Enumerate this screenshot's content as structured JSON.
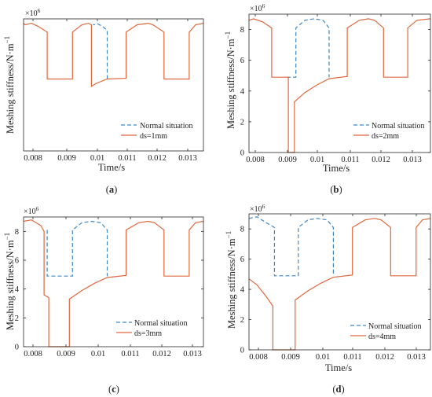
{
  "colors": {
    "normal": "#3d86c6",
    "damaged": "#e0673d",
    "axis": "#262626"
  },
  "panels": [
    {
      "caption_open": "(",
      "caption_letter": "a",
      "caption_close": ")",
      "exponent_base": "×10",
      "exponent_power": "6",
      "legend": [
        "Normal situation",
        "ds=1mm"
      ],
      "xlabel": "Time/s",
      "ylabel": "Meshing stiffness/N·m",
      "ylabel_sup": "−1",
      "yticks": [],
      "xticks": [
        "0.008",
        "0.009",
        "0.01",
        "0.011",
        "0.012",
        "0.013"
      ]
    },
    {
      "caption_open": "(",
      "caption_letter": "b",
      "caption_close": ")",
      "exponent_base": "×10",
      "exponent_power": "6",
      "legend": [
        "Normal situation",
        "ds=2mm"
      ],
      "xlabel": "Time/s",
      "ylabel": "Meshing stiffness/N·m",
      "ylabel_sup": "−1",
      "yticks": [
        "0",
        "2",
        "4",
        "6",
        "8"
      ],
      "xticks": [
        "0.008",
        "0.009",
        "0.01",
        "0.011",
        "0.012",
        "0.013"
      ]
    },
    {
      "caption_open": "(",
      "caption_letter": "c",
      "caption_close": ")",
      "exponent_base": "×10",
      "exponent_power": "6",
      "legend": [
        "Normal situation",
        "ds=3mm"
      ],
      "xlabel": "Time/s",
      "ylabel": "Meshing stiffness/N·m",
      "ylabel_sup": "−1",
      "yticks": [
        "0",
        "2",
        "4",
        "6",
        "8"
      ],
      "xticks": [
        "0.008",
        "0.009",
        "0.01",
        "0.011",
        "0.012",
        "0.013"
      ]
    },
    {
      "caption_open": "(",
      "caption_letter": "d",
      "caption_close": ")",
      "exponent_base": "×10",
      "exponent_power": "6",
      "legend": [
        "Normal situation",
        "ds=4mm"
      ],
      "xlabel": "Time/s",
      "ylabel": "Meshing stiffness/N·m",
      "ylabel_sup": "−1",
      "yticks": [
        "0",
        "2",
        "4",
        "6",
        "8"
      ],
      "xticks": [
        "0.008",
        "0.009",
        "0.01",
        "0.011",
        "0.012",
        "0.013"
      ]
    }
  ],
  "chart_data": [
    {
      "type": "line",
      "ylabel": "Meshing stiffness/N·m−1",
      "xlabel": "Time/s",
      "y_multiplier": "×10^6",
      "xlim": [
        0.00775,
        0.01345
      ],
      "ylim": [
        0,
        9
      ],
      "legend_position": "bottom-right",
      "series": [
        {
          "name": "Normal situation",
          "style": "dashed",
          "points": [
            [
              0.0104,
              4.9
            ],
            [
              0.0104,
              8.2
            ],
            [
              0.01025,
              8.5
            ],
            [
              0.0101,
              8.65
            ],
            [
              0.00995,
              8.6
            ]
          ]
        },
        {
          "name": "ds=1mm",
          "style": "solid",
          "points": [
            [
              0.00775,
              8.7
            ],
            [
              0.0078,
              8.6
            ],
            [
              0.008,
              8.7
            ],
            [
              0.0082,
              8.5
            ],
            [
              0.0085,
              8.1
            ],
            [
              0.0085,
              4.9
            ],
            [
              0.0093,
              4.9
            ],
            [
              0.0093,
              8.1
            ],
            [
              0.0096,
              8.6
            ],
            [
              0.0098,
              8.7
            ],
            [
              0.0099,
              8.6
            ],
            [
              0.0099,
              4.4
            ],
            [
              0.01005,
              4.6
            ],
            [
              0.0104,
              4.9
            ],
            [
              0.011,
              4.95
            ],
            [
              0.011,
              8.1
            ],
            [
              0.01135,
              8.6
            ],
            [
              0.0117,
              8.7
            ],
            [
              0.01185,
              8.6
            ],
            [
              0.0122,
              8.1
            ],
            [
              0.0122,
              4.9
            ],
            [
              0.013,
              4.9
            ],
            [
              0.013,
              8.1
            ],
            [
              0.0132,
              8.6
            ],
            [
              0.01345,
              8.7
            ]
          ]
        }
      ]
    },
    {
      "type": "line",
      "ylabel": "Meshing stiffness/N·m−1",
      "xlabel": "Time/s",
      "y_multiplier": "×10^6",
      "xlim": [
        0.00775,
        0.01375
      ],
      "ylim": [
        0,
        9
      ],
      "yticks": [
        0,
        2,
        4,
        6,
        8
      ],
      "legend_position": "bottom-right",
      "series": [
        {
          "name": "Normal situation",
          "style": "dashed",
          "points": [
            [
              0.009,
              4.9
            ],
            [
              0.0093,
              4.9
            ],
            [
              0.0093,
              8.1
            ],
            [
              0.0096,
              8.6
            ],
            [
              0.0099,
              8.7
            ],
            [
              0.0102,
              8.6
            ],
            [
              0.0104,
              8.1
            ],
            [
              0.0104,
              4.9
            ]
          ]
        },
        {
          "name": "ds=2mm",
          "style": "solid",
          "points": [
            [
              0.00775,
              8.6
            ],
            [
              0.0079,
              8.7
            ],
            [
              0.0082,
              8.5
            ],
            [
              0.0085,
              8.1
            ],
            [
              0.0085,
              4.9
            ],
            [
              0.00905,
              4.9
            ],
            [
              0.00905,
              0
            ],
            [
              0.00925,
              0
            ],
            [
              0.00925,
              3.3
            ],
            [
              0.0096,
              3.9
            ],
            [
              0.01,
              4.4
            ],
            [
              0.0104,
              4.8
            ],
            [
              0.011,
              4.95
            ],
            [
              0.011,
              8.1
            ],
            [
              0.0114,
              8.6
            ],
            [
              0.0117,
              8.7
            ],
            [
              0.0119,
              8.6
            ],
            [
              0.0122,
              8.1
            ],
            [
              0.0122,
              4.9
            ],
            [
              0.013,
              4.9
            ],
            [
              0.013,
              8.1
            ],
            [
              0.0133,
              8.6
            ],
            [
              0.01375,
              8.7
            ]
          ]
        }
      ]
    },
    {
      "type": "line",
      "ylabel": "Meshing stiffness/N·m−1",
      "xlabel": "Time/s",
      "y_multiplier": "×10^6",
      "xlim": [
        0.00775,
        0.01345
      ],
      "ylim": [
        0,
        9
      ],
      "yticks": [
        0,
        2,
        4,
        6,
        8
      ],
      "legend_position": "bottom-right",
      "series": [
        {
          "name": "Normal situation",
          "style": "dashed",
          "points": [
            [
              0.0085,
              8.1
            ],
            [
              0.0085,
              4.9
            ],
            [
              0.0093,
              4.9
            ],
            [
              0.0093,
              8.1
            ],
            [
              0.0096,
              8.6
            ],
            [
              0.0099,
              8.7
            ],
            [
              0.0102,
              8.6
            ],
            [
              0.0104,
              8.1
            ],
            [
              0.0104,
              4.9
            ]
          ]
        },
        {
          "name": "ds=3mm",
          "style": "solid",
          "points": [
            [
              0.00775,
              8.7
            ],
            [
              0.008,
              8.8
            ],
            [
              0.0083,
              8.4
            ],
            [
              0.0084,
              8.0
            ],
            [
              0.0084,
              3.6
            ],
            [
              0.00855,
              3.4
            ],
            [
              0.00855,
              0
            ],
            [
              0.0092,
              0
            ],
            [
              0.0092,
              3.3
            ],
            [
              0.0096,
              3.9
            ],
            [
              0.01,
              4.4
            ],
            [
              0.0104,
              4.8
            ],
            [
              0.011,
              4.95
            ],
            [
              0.011,
              8.1
            ],
            [
              0.0114,
              8.6
            ],
            [
              0.0117,
              8.7
            ],
            [
              0.0119,
              8.6
            ],
            [
              0.0122,
              8.1
            ],
            [
              0.0122,
              4.9
            ],
            [
              0.013,
              4.9
            ],
            [
              0.013,
              8.1
            ],
            [
              0.0132,
              8.6
            ],
            [
              0.01345,
              8.7
            ]
          ]
        }
      ]
    },
    {
      "type": "line",
      "ylabel": "Meshing stiffness/N·m−1",
      "xlabel": "Time/s",
      "y_multiplier": "×10^6",
      "xlim": [
        0.00775,
        0.01345
      ],
      "ylim": [
        0,
        9
      ],
      "yticks": [
        0,
        2,
        4,
        6,
        8
      ],
      "legend_position": "bottom-right",
      "series": [
        {
          "name": "Normal situation",
          "style": "dashed",
          "points": [
            [
              0.00775,
              8.7
            ],
            [
              0.008,
              8.8
            ],
            [
              0.0083,
              8.4
            ],
            [
              0.00855,
              8.1
            ],
            [
              0.00855,
              4.9
            ],
            [
              0.0093,
              4.9
            ],
            [
              0.0093,
              8.1
            ],
            [
              0.0096,
              8.6
            ],
            [
              0.0099,
              8.7
            ],
            [
              0.0102,
              8.6
            ],
            [
              0.0104,
              8.1
            ],
            [
              0.0104,
              4.9
            ]
          ]
        },
        {
          "name": "ds=4mm",
          "style": "solid",
          "points": [
            [
              0.00775,
              4.7
            ],
            [
              0.008,
              4.3
            ],
            [
              0.0083,
              3.5
            ],
            [
              0.0085,
              2.9
            ],
            [
              0.0085,
              0
            ],
            [
              0.0092,
              0
            ],
            [
              0.0092,
              3.3
            ],
            [
              0.0096,
              3.9
            ],
            [
              0.01,
              4.4
            ],
            [
              0.0104,
              4.8
            ],
            [
              0.011,
              4.95
            ],
            [
              0.011,
              8.1
            ],
            [
              0.0114,
              8.6
            ],
            [
              0.0117,
              8.7
            ],
            [
              0.0119,
              8.6
            ],
            [
              0.0122,
              8.1
            ],
            [
              0.0122,
              4.9
            ],
            [
              0.013,
              4.9
            ],
            [
              0.013,
              8.1
            ],
            [
              0.0132,
              8.6
            ],
            [
              0.01345,
              8.7
            ]
          ]
        }
      ]
    }
  ]
}
